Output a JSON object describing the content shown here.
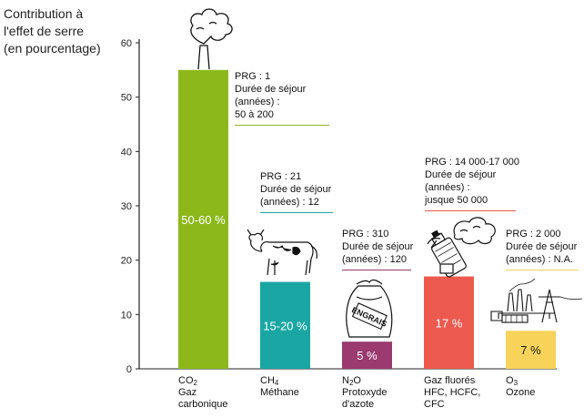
{
  "chart_data": {
    "type": "bar",
    "title": "",
    "ylabel_lines": [
      "Contribution à",
      "l'effet de serre",
      "(en pourcentage)"
    ],
    "ylim": [
      0,
      60
    ],
    "yticks": [
      0,
      10,
      20,
      30,
      40,
      50,
      60
    ],
    "grid": false,
    "legend": "none",
    "bars": [
      {
        "formula_main": "CO",
        "formula_sub": "2",
        "name_lines": [
          "Gaz",
          "carbonique"
        ],
        "value": 55,
        "value_label": "50-60 %",
        "color": "#8db81b",
        "note_lines": [
          "PRG : 1",
          "Durée de séjour",
          "(années) :",
          "50 à 200"
        ],
        "note_rule_color": "#8db81b",
        "icon": "factory-smoke-icon"
      },
      {
        "formula_main": "CH",
        "formula_sub": "4",
        "name_lines": [
          "Méthane"
        ],
        "value": 16,
        "value_label": "15-20 %",
        "color": "#1aa7a3",
        "note_lines": [
          "PRG : 21",
          "Durée de séjour",
          "(années) : 12"
        ],
        "note_rule_color": "#1aa7a3",
        "icon": "cow-icon"
      },
      {
        "formula_main": "N",
        "formula_sub": "2",
        "formula_tail": "O",
        "name_lines": [
          "Protoxyde",
          "d'azote"
        ],
        "value": 5,
        "value_label": "5 %",
        "color": "#9a3a6e",
        "note_lines": [
          "PRG : 310",
          "Durée de séjour",
          "(années) : 120"
        ],
        "note_rule_color": "#9a3a6e",
        "icon": "fertilizer-bag-icon",
        "icon_text": "ENGRAIS"
      },
      {
        "formula_main": "Gaz fluorés",
        "name_lines": [
          "HFC, HCFC,",
          "CFC"
        ],
        "value": 17,
        "value_label": "17 %",
        "color": "#ec5a4f",
        "note_lines": [
          "PRG : 14 000-17 000",
          "Durée de séjour",
          "(années) :",
          "jusque 50 000"
        ],
        "note_rule_color": "#ec5a4f",
        "icon": "aerosol-can-icon"
      },
      {
        "formula_main": "O",
        "formula_sub": "3",
        "name_lines": [
          "Ozone"
        ],
        "value": 7,
        "value_label": "7 %",
        "color": "#f7d35a",
        "note_lines": [
          "PRG : 2 000",
          "Durée de séjour",
          "(années) : N.A."
        ],
        "note_rule_color": "#f7d35a",
        "icon": "power-plant-icon"
      }
    ]
  }
}
